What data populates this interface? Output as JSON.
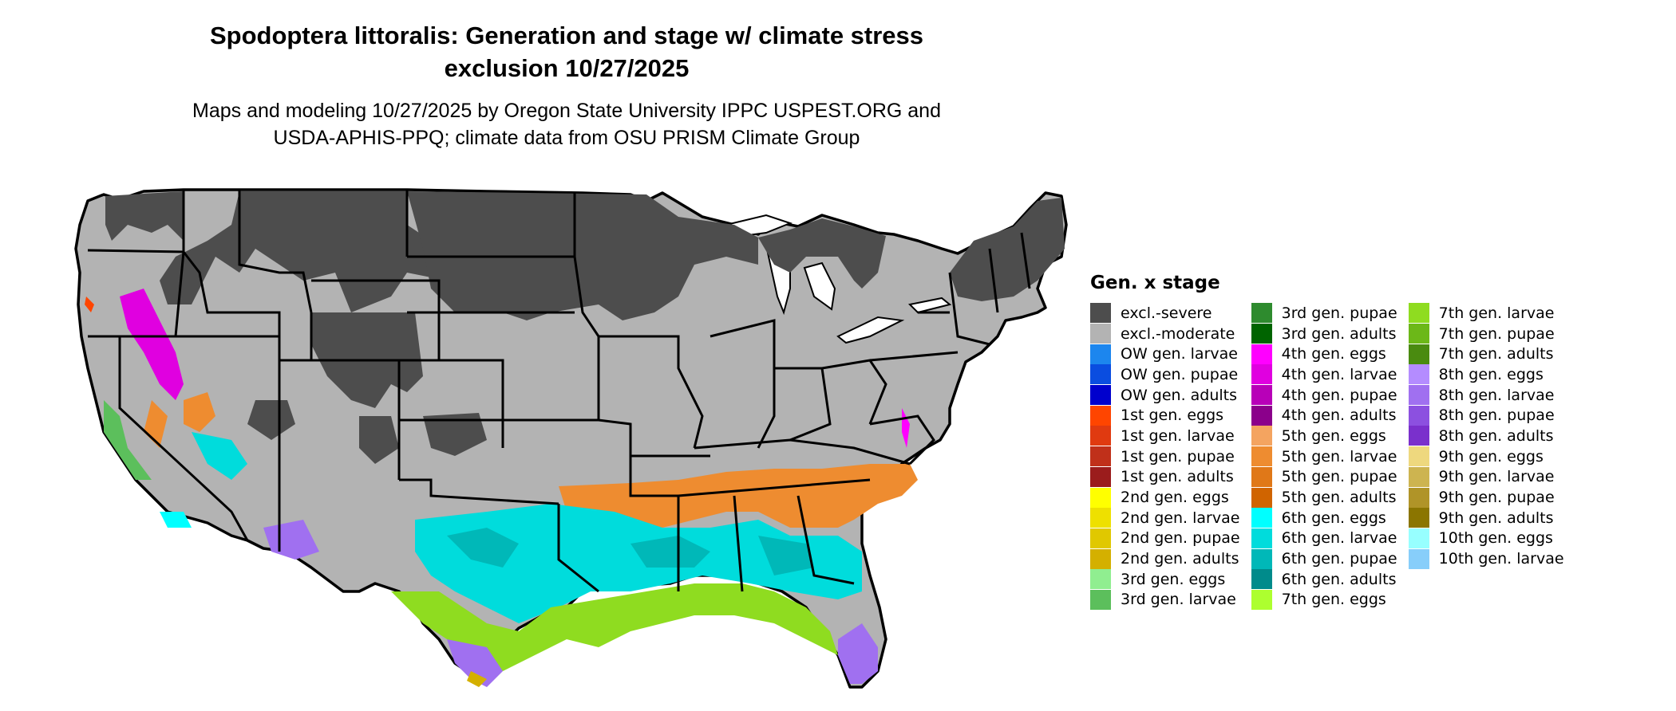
{
  "title_line1": "Spodoptera littoralis: Generation and stage w/ climate stress",
  "title_line2": "exclusion 10/27/2025",
  "subtitle_line1": "Maps and modeling 10/27/2025 by Oregon State University IPPC USPEST.ORG and",
  "subtitle_line2": "USDA-APHIS-PPQ; climate data from OSU PRISM Climate Group",
  "legend": {
    "title": "Gen. x stage",
    "columns": [
      [
        {
          "label": "excl.-severe",
          "color": "#4d4d4d"
        },
        {
          "label": "excl.-moderate",
          "color": "#b3b3b3"
        },
        {
          "label": "OW gen. larvae",
          "color": "#1c86ee"
        },
        {
          "label": "OW gen. pupae",
          "color": "#0a4de0"
        },
        {
          "label": "OW gen. adults",
          "color": "#0000cd"
        },
        {
          "label": "1st gen. eggs",
          "color": "#ff4500"
        },
        {
          "label": "1st gen. larvae",
          "color": "#e03a10"
        },
        {
          "label": "1st gen. pupae",
          "color": "#c0301a"
        },
        {
          "label": "1st gen. adults",
          "color": "#9b1c1c"
        },
        {
          "label": "2nd gen. eggs",
          "color": "#ffff00"
        },
        {
          "label": "2nd gen. larvae",
          "color": "#eee000"
        },
        {
          "label": "2nd gen. pupae",
          "color": "#e0c800"
        },
        {
          "label": "2nd gen. adults",
          "color": "#d4b000"
        },
        {
          "label": "3rd gen. eggs",
          "color": "#90ee90"
        },
        {
          "label": "3rd gen. larvae",
          "color": "#5cbf5c"
        }
      ],
      [
        {
          "label": "3rd gen. pupae",
          "color": "#2e8b2e"
        },
        {
          "label": "3rd gen. adults",
          "color": "#006400"
        },
        {
          "label": "4th gen. eggs",
          "color": "#ff00ff"
        },
        {
          "label": "4th gen. larvae",
          "color": "#e000e0"
        },
        {
          "label": "4th gen. pupae",
          "color": "#b800b8"
        },
        {
          "label": "4th gen. adults",
          "color": "#8b008b"
        },
        {
          "label": "5th gen. eggs",
          "color": "#f4a460"
        },
        {
          "label": "5th gen. larvae",
          "color": "#ee8c30"
        },
        {
          "label": "5th gen. pupae",
          "color": "#e07818"
        },
        {
          "label": "5th gen. adults",
          "color": "#d06400"
        },
        {
          "label": "6th gen. eggs",
          "color": "#00ffff"
        },
        {
          "label": "6th gen. larvae",
          "color": "#00dcdc"
        },
        {
          "label": "6th gen. pupae",
          "color": "#00b8b8"
        },
        {
          "label": "6th gen. adults",
          "color": "#008b8b"
        },
        {
          "label": "7th gen. eggs",
          "color": "#adff2f"
        }
      ],
      [
        {
          "label": "7th gen. larvae",
          "color": "#8fdc20"
        },
        {
          "label": "7th gen. pupae",
          "color": "#6cb818"
        },
        {
          "label": "7th gen. adults",
          "color": "#4a8b10"
        },
        {
          "label": "8th gen. eggs",
          "color": "#b48cff"
        },
        {
          "label": "8th gen. larvae",
          "color": "#a070f0"
        },
        {
          "label": "8th gen. pupae",
          "color": "#8c50e0"
        },
        {
          "label": "8th gen. adults",
          "color": "#7a30cc"
        },
        {
          "label": "9th gen. eggs",
          "color": "#eed87e"
        },
        {
          "label": "9th gen. larvae",
          "color": "#cdb450"
        },
        {
          "label": "9th gen. pupae",
          "color": "#b09428"
        },
        {
          "label": "9th gen. adults",
          "color": "#8b7500"
        },
        {
          "label": "10th gen. eggs",
          "color": "#97ffff"
        },
        {
          "label": "10th gen. larvae",
          "color": "#87cefa"
        }
      ]
    ]
  }
}
